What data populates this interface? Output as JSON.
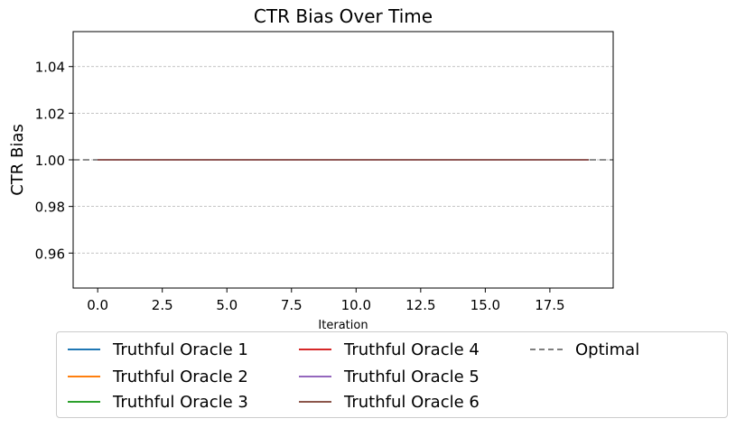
{
  "chart_data": {
    "type": "line",
    "title": "CTR Bias Over Time",
    "xlabel": "Iteration",
    "ylabel": "CTR Bias",
    "xlim": [
      -0.95,
      19.95
    ],
    "ylim": [
      0.945,
      1.055
    ],
    "xticks": [
      0.0,
      2.5,
      5.0,
      7.5,
      10.0,
      12.5,
      15.0,
      17.5
    ],
    "xtick_labels": [
      "0.0",
      "2.5",
      "5.0",
      "7.5",
      "10.0",
      "12.5",
      "15.0",
      "17.5"
    ],
    "yticks": [
      0.96,
      0.98,
      1.0,
      1.02,
      1.04
    ],
    "ytick_labels": [
      "0.96",
      "0.98",
      "1.00",
      "1.02",
      "1.04"
    ],
    "grid": "y-dashed",
    "legend_placement": "bottom-center",
    "x": [
      0,
      1,
      2,
      3,
      4,
      5,
      6,
      7,
      8,
      9,
      10,
      11,
      12,
      13,
      14,
      15,
      16,
      17,
      18,
      19
    ],
    "series": [
      {
        "name": "Truthful Oracle 1",
        "color": "#1f77b4",
        "style": "solid",
        "values": [
          1,
          1,
          1,
          1,
          1,
          1,
          1,
          1,
          1,
          1,
          1,
          1,
          1,
          1,
          1,
          1,
          1,
          1,
          1,
          1
        ]
      },
      {
        "name": "Truthful Oracle 2",
        "color": "#ff7f0e",
        "style": "solid",
        "values": [
          1,
          1,
          1,
          1,
          1,
          1,
          1,
          1,
          1,
          1,
          1,
          1,
          1,
          1,
          1,
          1,
          1,
          1,
          1,
          1
        ]
      },
      {
        "name": "Truthful Oracle 3",
        "color": "#2ca02c",
        "style": "solid",
        "values": [
          1,
          1,
          1,
          1,
          1,
          1,
          1,
          1,
          1,
          1,
          1,
          1,
          1,
          1,
          1,
          1,
          1,
          1,
          1,
          1
        ]
      },
      {
        "name": "Truthful Oracle 4",
        "color": "#d62728",
        "style": "solid",
        "values": [
          1,
          1,
          1,
          1,
          1,
          1,
          1,
          1,
          1,
          1,
          1,
          1,
          1,
          1,
          1,
          1,
          1,
          1,
          1,
          1
        ]
      },
      {
        "name": "Truthful Oracle 5",
        "color": "#9467bd",
        "style": "solid",
        "values": [
          1,
          1,
          1,
          1,
          1,
          1,
          1,
          1,
          1,
          1,
          1,
          1,
          1,
          1,
          1,
          1,
          1,
          1,
          1,
          1
        ]
      },
      {
        "name": "Truthful Oracle 6",
        "color": "#8c564b",
        "style": "solid",
        "values": [
          1,
          1,
          1,
          1,
          1,
          1,
          1,
          1,
          1,
          1,
          1,
          1,
          1,
          1,
          1,
          1,
          1,
          1,
          1,
          1
        ]
      }
    ],
    "reference_line": {
      "name": "Optimal",
      "y": 1.0,
      "color": "#7f7f7f",
      "style": "dashed"
    }
  }
}
